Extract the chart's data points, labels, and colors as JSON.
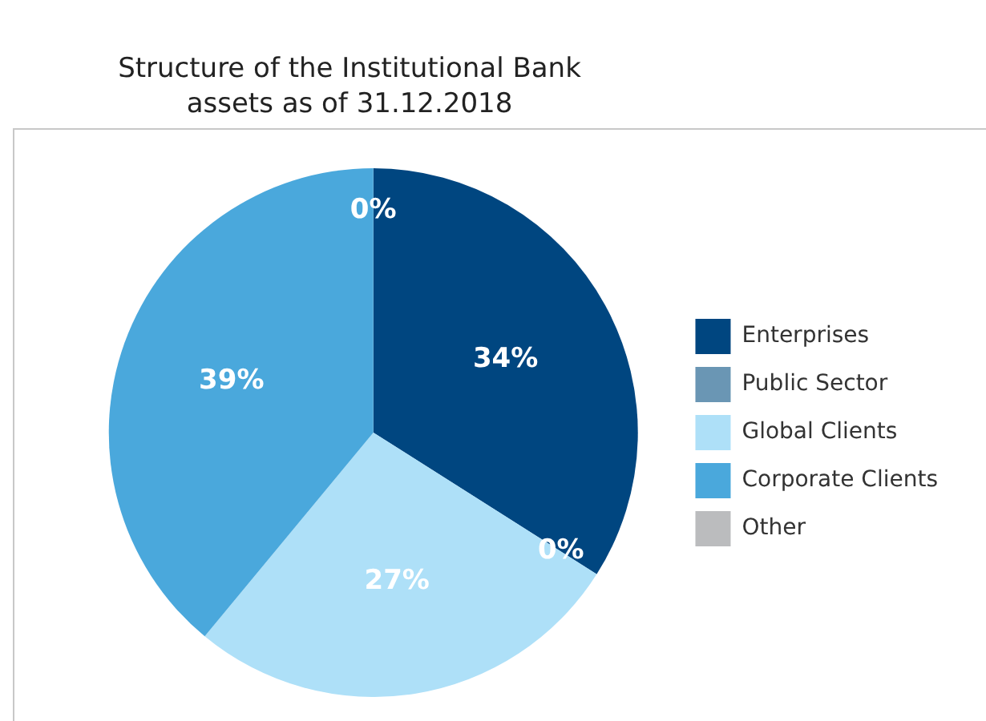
{
  "chart_data": {
    "type": "pie",
    "title": "Structure of the Institutional Bank assets as of 31.12.2018",
    "categories": [
      "Enterprises",
      "Public Sector",
      "Global Clients",
      "Corporate Clients",
      "Other"
    ],
    "values": [
      34,
      0,
      27,
      39,
      0
    ],
    "colors": [
      "#004680",
      "#6a96b4",
      "#aee0f8",
      "#4aa8dc",
      "#bbbcbe"
    ],
    "value_labels": [
      "34%",
      "0%",
      "27%",
      "39%",
      "0%"
    ],
    "legend": "right"
  }
}
